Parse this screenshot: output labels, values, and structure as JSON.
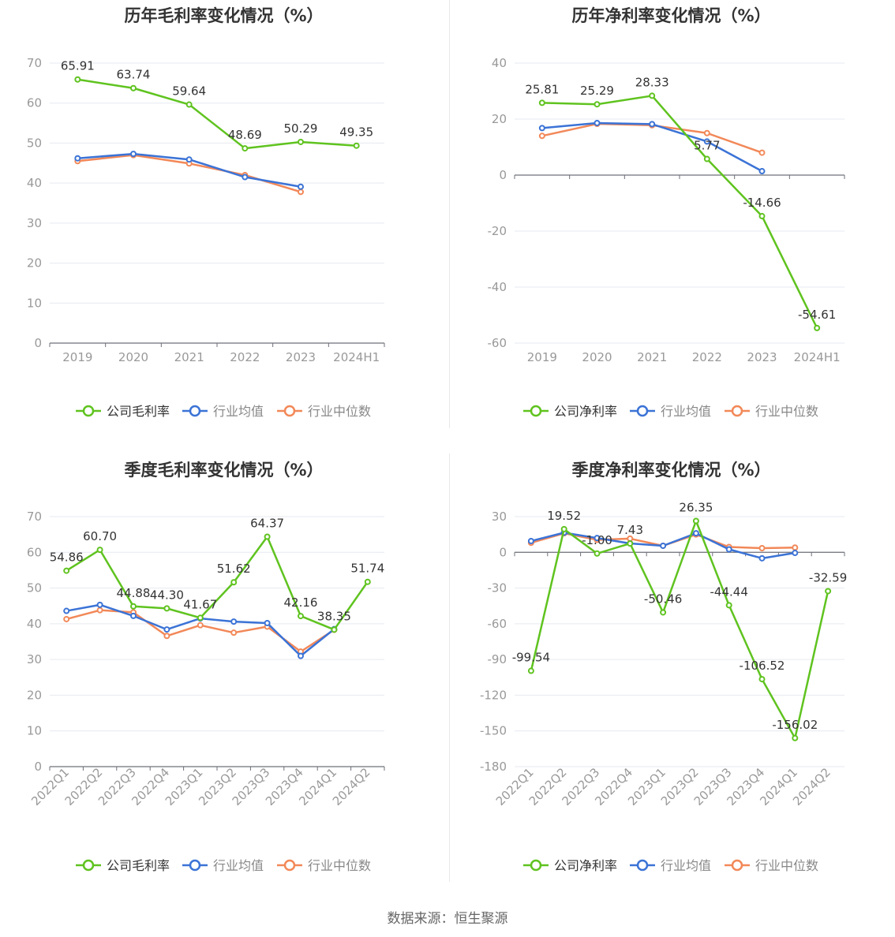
{
  "colors": {
    "company": "#5fc31f",
    "industry_avg": "#3b73d6",
    "industry_median": "#f28858"
  },
  "footer": {
    "source": "数据来源：恒生聚源"
  },
  "chart_data": [
    {
      "type": "line",
      "title": "历年毛利率变化情况（%）",
      "categories": [
        "2019",
        "2020",
        "2021",
        "2022",
        "2023",
        "2024H1"
      ],
      "ylim": [
        0,
        70
      ],
      "yticks": [
        0,
        10,
        20,
        30,
        40,
        50,
        60,
        70
      ],
      "legend": [
        "公司毛利率",
        "行业均值",
        "行业中位数"
      ],
      "legend_position": "bottom",
      "series": [
        {
          "name": "公司毛利率",
          "values": [
            65.91,
            63.74,
            59.64,
            48.69,
            50.29,
            49.35
          ],
          "labels": true
        },
        {
          "name": "行业均值",
          "values": [
            46.2,
            47.3,
            45.9,
            41.5,
            39.1,
            null
          ],
          "labels": false
        },
        {
          "name": "行业中位数",
          "values": [
            45.5,
            47.0,
            44.9,
            42.0,
            37.8,
            null
          ],
          "labels": false
        }
      ]
    },
    {
      "type": "line",
      "title": "历年净利率变化情况（%）",
      "categories": [
        "2019",
        "2020",
        "2021",
        "2022",
        "2023",
        "2024H1"
      ],
      "ylim": [
        -60,
        40
      ],
      "yticks": [
        -60,
        -40,
        -20,
        0,
        20,
        40
      ],
      "legend": [
        "公司净利率",
        "行业均值",
        "行业中位数"
      ],
      "legend_position": "bottom",
      "series": [
        {
          "name": "公司净利率",
          "values": [
            25.81,
            25.29,
            28.33,
            5.77,
            -14.66,
            -54.61
          ],
          "labels": true
        },
        {
          "name": "行业均值",
          "values": [
            16.8,
            18.6,
            18.2,
            12.0,
            1.4,
            null
          ],
          "labels": false
        },
        {
          "name": "行业中位数",
          "values": [
            14.0,
            18.3,
            17.8,
            15.0,
            8.0,
            null
          ],
          "labels": false
        }
      ]
    },
    {
      "type": "line",
      "title": "季度毛利率变化情况（%）",
      "categories": [
        "2022Q1",
        "2022Q2",
        "2022Q3",
        "2022Q4",
        "2023Q1",
        "2023Q2",
        "2023Q3",
        "2023Q4",
        "2024Q1",
        "2024Q2"
      ],
      "ylim": [
        0,
        70
      ],
      "yticks": [
        0,
        10,
        20,
        30,
        40,
        50,
        60,
        70
      ],
      "legend": [
        "公司毛利率",
        "行业均值",
        "行业中位数"
      ],
      "legend_position": "bottom",
      "series": [
        {
          "name": "公司毛利率",
          "values": [
            54.86,
            60.7,
            44.88,
            44.3,
            41.67,
            51.62,
            64.37,
            42.16,
            38.35,
            51.74
          ],
          "labels": true
        },
        {
          "name": "行业均值",
          "values": [
            43.6,
            45.3,
            42.2,
            38.4,
            41.5,
            40.6,
            40.2,
            31.0,
            38.5,
            null
          ],
          "labels": false
        },
        {
          "name": "行业中位数",
          "values": [
            41.3,
            43.8,
            43.2,
            36.6,
            39.6,
            37.5,
            39.2,
            32.2,
            38.3,
            null
          ],
          "labels": false
        }
      ]
    },
    {
      "type": "line",
      "title": "季度净利率变化情况（%）",
      "categories": [
        "2022Q1",
        "2022Q2",
        "2022Q3",
        "2022Q4",
        "2023Q1",
        "2023Q2",
        "2023Q3",
        "2023Q4",
        "2024Q1",
        "2024Q2"
      ],
      "ylim": [
        -180,
        30
      ],
      "yticks": [
        -180,
        -150,
        -120,
        -90,
        -60,
        -30,
        0,
        30
      ],
      "legend": [
        "公司净利率",
        "行业均值",
        "行业中位数"
      ],
      "legend_position": "bottom",
      "series": [
        {
          "name": "公司净利率",
          "values": [
            -99.54,
            19.52,
            -1.0,
            7.43,
            -50.46,
            26.35,
            -44.44,
            -106.52,
            -156.02,
            -32.59
          ],
          "labels": true
        },
        {
          "name": "行业均值",
          "values": [
            9.5,
            16.5,
            12.0,
            7.5,
            5.5,
            16.0,
            2.5,
            -5.0,
            -0.5,
            null
          ],
          "labels": false
        },
        {
          "name": "行业中位数",
          "values": [
            8.0,
            16.0,
            10.5,
            11.5,
            5.5,
            15.0,
            4.5,
            3.5,
            4.0,
            null
          ],
          "labels": false
        }
      ]
    }
  ]
}
